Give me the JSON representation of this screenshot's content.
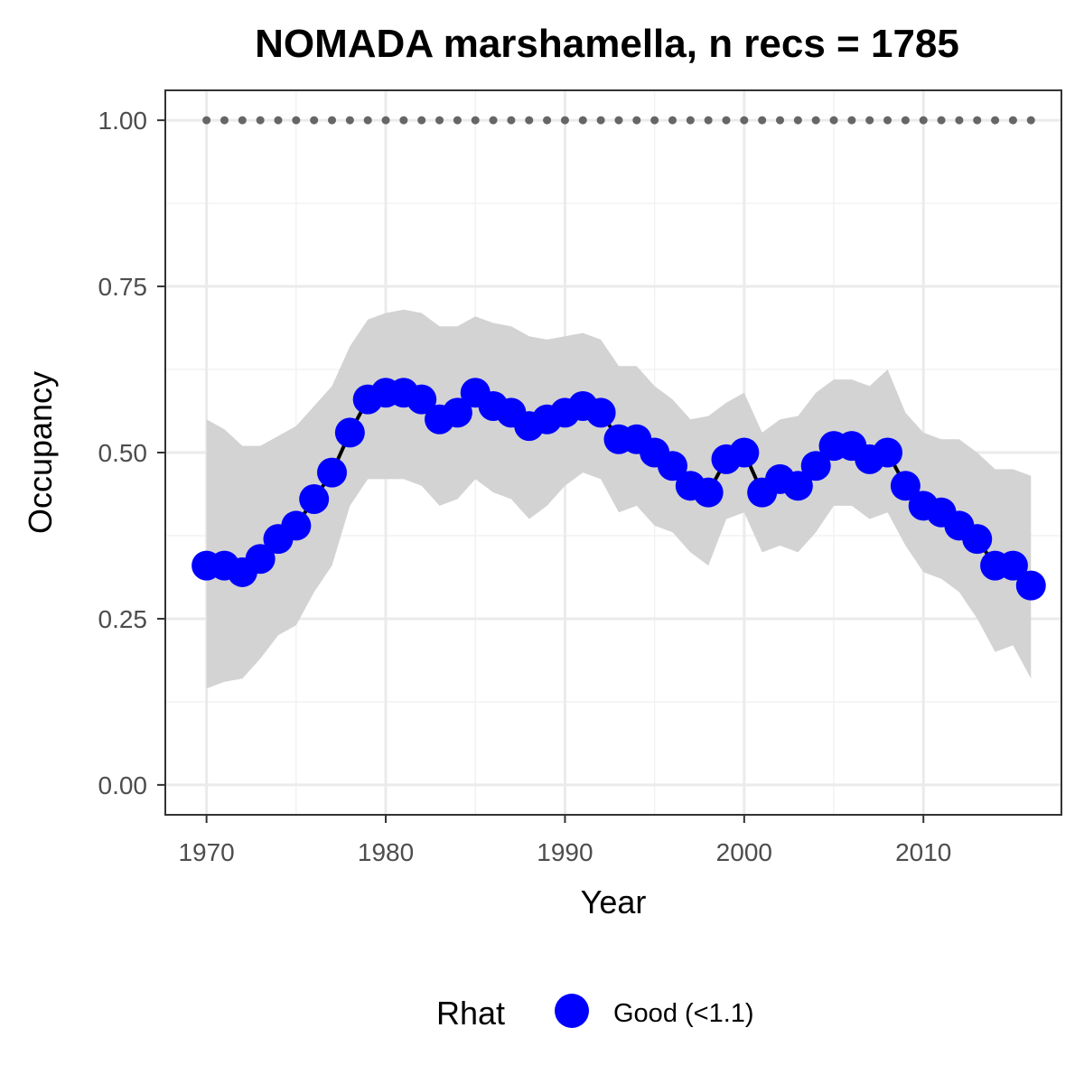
{
  "chart_data": {
    "type": "line",
    "title": "NOMADA marshamella, n recs = 1785",
    "xlabel": "Year",
    "ylabel": "Occupancy",
    "xlim": [
      1967.7,
      2017.7
    ],
    "ylim": [
      -0.045,
      1.045
    ],
    "x_ticks": [
      1970,
      1980,
      1990,
      2000,
      2010
    ],
    "x_tick_labels": [
      "1970",
      "1980",
      "1990",
      "2000",
      "2010"
    ],
    "y_ticks": [
      0,
      0.25,
      0.5,
      0.75,
      1.0
    ],
    "y_tick_labels": [
      "0.00",
      "0.25",
      "0.50",
      "0.75",
      "1.00"
    ],
    "grid": true,
    "legend": {
      "title": "Rhat",
      "position": "bottom",
      "entries": [
        {
          "label": "Good (<1.1)",
          "color": "#0000FF"
        }
      ]
    },
    "colors": {
      "points": "#0000FF",
      "line": "#000000",
      "ribbon": "#d3d3d3",
      "reference": "#666666"
    },
    "x": [
      1970,
      1971,
      1972,
      1973,
      1974,
      1975,
      1976,
      1977,
      1978,
      1979,
      1980,
      1981,
      1982,
      1983,
      1984,
      1985,
      1986,
      1987,
      1988,
      1989,
      1990,
      1991,
      1992,
      1993,
      1994,
      1995,
      1996,
      1997,
      1998,
      1999,
      2000,
      2001,
      2002,
      2003,
      2004,
      2005,
      2006,
      2007,
      2008,
      2009,
      2010,
      2011,
      2012,
      2013,
      2014,
      2015,
      2016
    ],
    "series": [
      {
        "name": "Good (<1.1)",
        "values": [
          0.33,
          0.33,
          0.32,
          0.34,
          0.37,
          0.39,
          0.43,
          0.47,
          0.53,
          0.58,
          0.59,
          0.59,
          0.58,
          0.55,
          0.56,
          0.59,
          0.57,
          0.56,
          0.54,
          0.55,
          0.56,
          0.57,
          0.56,
          0.52,
          0.52,
          0.5,
          0.48,
          0.45,
          0.44,
          0.49,
          0.5,
          0.44,
          0.46,
          0.45,
          0.48,
          0.51,
          0.51,
          0.49,
          0.5,
          0.45,
          0.42,
          0.41,
          0.39,
          0.37,
          0.33,
          0.33,
          0.3
        ],
        "lower": [
          0.145,
          0.155,
          0.16,
          0.19,
          0.225,
          0.24,
          0.29,
          0.33,
          0.42,
          0.46,
          0.46,
          0.46,
          0.45,
          0.42,
          0.43,
          0.46,
          0.44,
          0.43,
          0.4,
          0.42,
          0.45,
          0.47,
          0.46,
          0.41,
          0.42,
          0.39,
          0.38,
          0.35,
          0.33,
          0.4,
          0.41,
          0.35,
          0.36,
          0.35,
          0.38,
          0.42,
          0.42,
          0.4,
          0.41,
          0.36,
          0.32,
          0.31,
          0.29,
          0.25,
          0.2,
          0.21,
          0.16
        ],
        "upper": [
          0.55,
          0.535,
          0.51,
          0.51,
          0.525,
          0.54,
          0.57,
          0.6,
          0.66,
          0.7,
          0.71,
          0.715,
          0.71,
          0.69,
          0.69,
          0.705,
          0.695,
          0.69,
          0.675,
          0.67,
          0.675,
          0.68,
          0.67,
          0.63,
          0.63,
          0.6,
          0.58,
          0.55,
          0.555,
          0.575,
          0.59,
          0.53,
          0.55,
          0.555,
          0.59,
          0.61,
          0.61,
          0.6,
          0.625,
          0.56,
          0.53,
          0.52,
          0.52,
          0.5,
          0.475,
          0.475,
          0.465
        ]
      }
    ],
    "reference_line": {
      "y": 1.0
    }
  }
}
